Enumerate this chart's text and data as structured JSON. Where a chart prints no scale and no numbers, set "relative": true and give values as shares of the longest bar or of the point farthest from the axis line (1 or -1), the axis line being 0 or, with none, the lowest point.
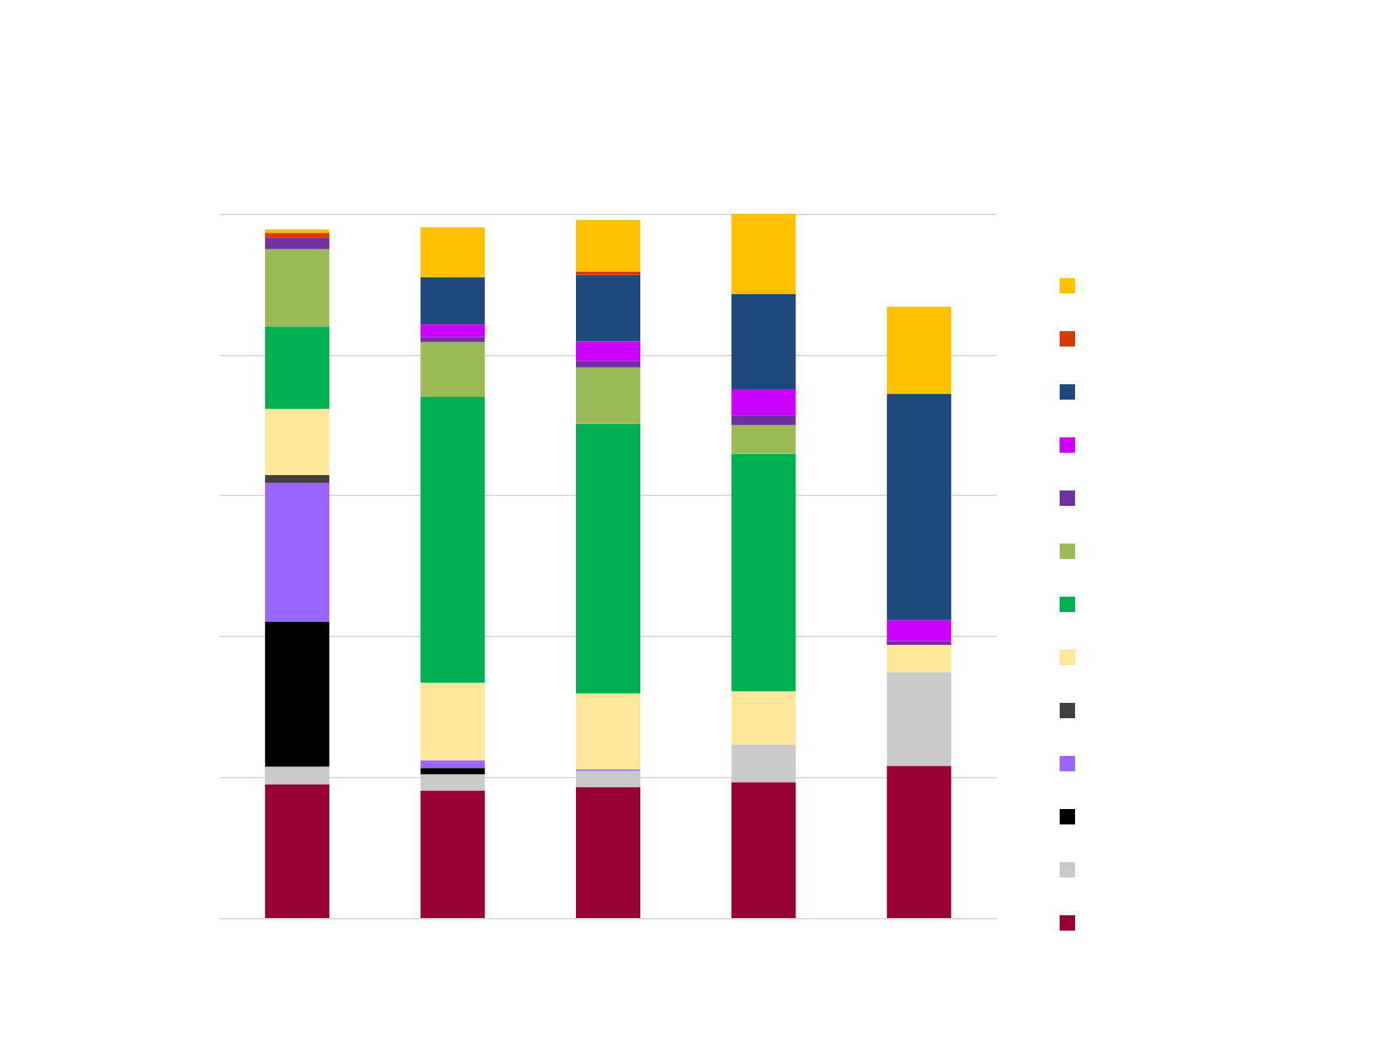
{
  "chart_data": {
    "type": "bar",
    "stacked": true,
    "relative": true,
    "grid": "y",
    "categories": [
      null,
      null,
      null,
      null,
      null
    ],
    "series": [
      {
        "color": "#990033",
        "values": [
          0.19,
          0.181,
          0.186,
          0.193,
          0.216
        ]
      },
      {
        "color": "#c9c9c9",
        "values": [
          0.025,
          0.023,
          0.023,
          0.053,
          0.133
        ]
      },
      {
        "color": "#000000",
        "values": [
          0.206,
          0.009,
          0,
          0,
          0
        ]
      },
      {
        "color": "#9966ff",
        "values": [
          0.197,
          0.011,
          0.002,
          0,
          0
        ]
      },
      {
        "color": "#404040",
        "values": [
          0.011,
          0,
          0,
          0,
          0
        ]
      },
      {
        "color": "#ffe699",
        "values": [
          0.094,
          0.11,
          0.108,
          0.076,
          0.039
        ]
      },
      {
        "color": "#00b050",
        "values": [
          0.117,
          0.406,
          0.383,
          0.337,
          0
        ]
      },
      {
        "color": "#9bbb59",
        "values": [
          0.11,
          0.078,
          0.08,
          0.041,
          0
        ]
      },
      {
        "color": "#7030a0",
        "values": [
          0.016,
          0.007,
          0.009,
          0.014,
          0.005
        ]
      },
      {
        "color": "#cc00ff",
        "values": [
          0,
          0.018,
          0.028,
          0.037,
          0.03
        ]
      },
      {
        "color": "#1f497d",
        "values": [
          0,
          0.067,
          0.094,
          0.135,
          0.321
        ]
      },
      {
        "color": "#d83b01",
        "values": [
          0.007,
          0,
          0.005,
          0,
          0
        ]
      },
      {
        "color": "#ffc000",
        "values": [
          0.005,
          0.071,
          0.073,
          0.114,
          0.124
        ]
      }
    ]
  }
}
